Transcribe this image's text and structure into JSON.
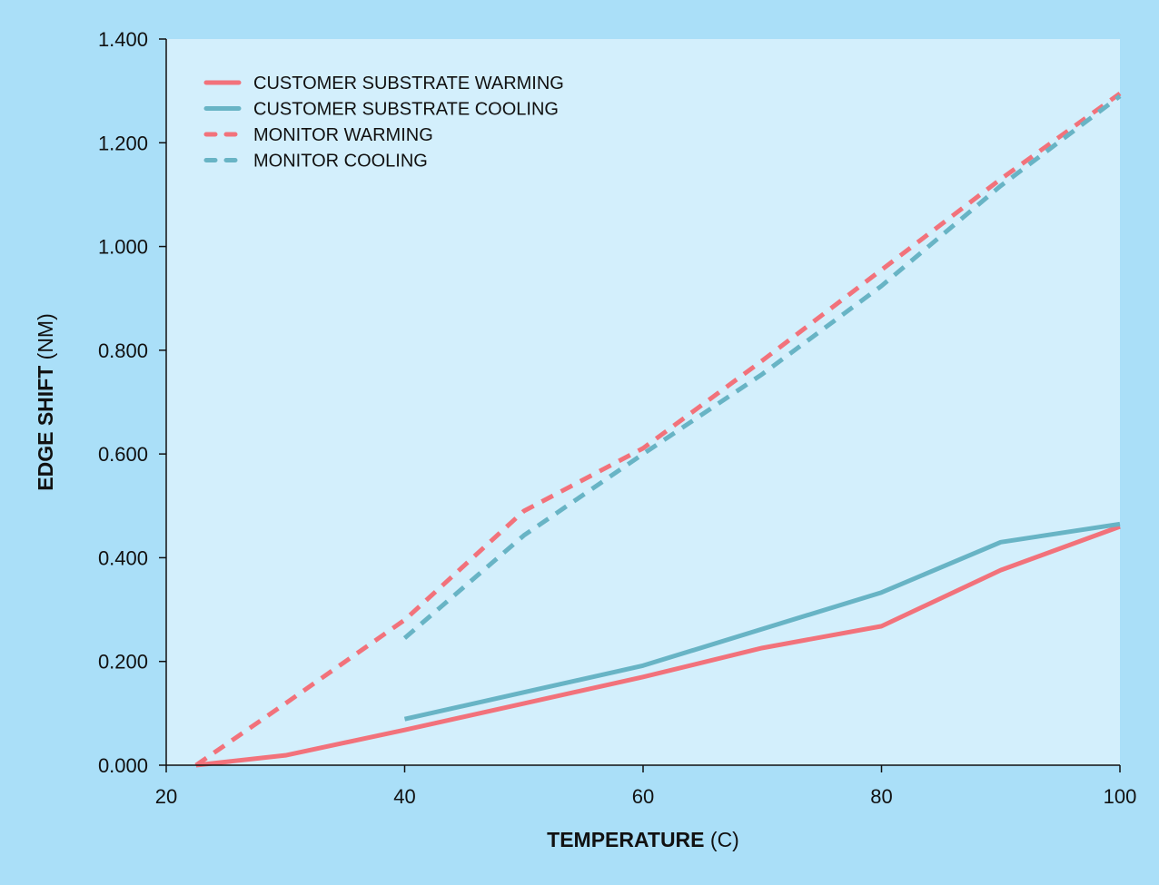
{
  "chart_data": {
    "type": "line",
    "title": "",
    "xlabel": {
      "bold": "TEMPERATURE",
      "unit": "(C)"
    },
    "ylabel": {
      "bold": "EDGE SHIFT",
      "unit": "(NM)"
    },
    "xlim": [
      20,
      100
    ],
    "ylim": [
      0,
      1.4
    ],
    "xticks": [
      "20",
      "40",
      "60",
      "80",
      "100"
    ],
    "xtick_values": [
      20,
      40,
      60,
      80,
      100
    ],
    "yticks": [
      "0.000",
      "0.200",
      "0.400",
      "0.600",
      "0.800",
      "1.000",
      "1.200",
      "1.400"
    ],
    "ytick_values": [
      0,
      0.2,
      0.4,
      0.6,
      0.8,
      1.0,
      1.2,
      1.4
    ],
    "grid": false,
    "legend_position": "top-left",
    "colors": {
      "warming": "#f2727b",
      "cooling": "#68b4c5",
      "plot_bg": "#d3effc",
      "outer_bg": "#aadff8"
    },
    "series": [
      {
        "name": "CUSTOMER SUBSTRATE WARMING",
        "color": "#f2727b",
        "dashed": false,
        "x": [
          22.5,
          30,
          40,
          60,
          70,
          80,
          90,
          100
        ],
        "y": [
          0.0,
          0.019,
          0.068,
          0.17,
          0.226,
          0.268,
          0.376,
          0.46
        ]
      },
      {
        "name": "CUSTOMER SUBSTRATE COOLING",
        "color": "#68b4c5",
        "dashed": false,
        "x": [
          40,
          60,
          80,
          90,
          100
        ],
        "y": [
          0.089,
          0.192,
          0.333,
          0.43,
          0.465
        ]
      },
      {
        "name": "MONITOR WARMING",
        "color": "#f2727b",
        "dashed": true,
        "x": [
          22.5,
          30,
          40,
          50,
          60,
          70,
          80,
          90,
          100
        ],
        "y": [
          0.0,
          0.119,
          0.28,
          0.49,
          0.611,
          0.78,
          0.955,
          1.13,
          1.295
        ]
      },
      {
        "name": "MONITOR COOLING",
        "color": "#68b4c5",
        "dashed": true,
        "x": [
          40,
          50,
          60,
          70,
          80,
          90,
          100
        ],
        "y": [
          0.245,
          0.443,
          0.6,
          0.754,
          0.924,
          1.117,
          1.29
        ]
      }
    ]
  }
}
